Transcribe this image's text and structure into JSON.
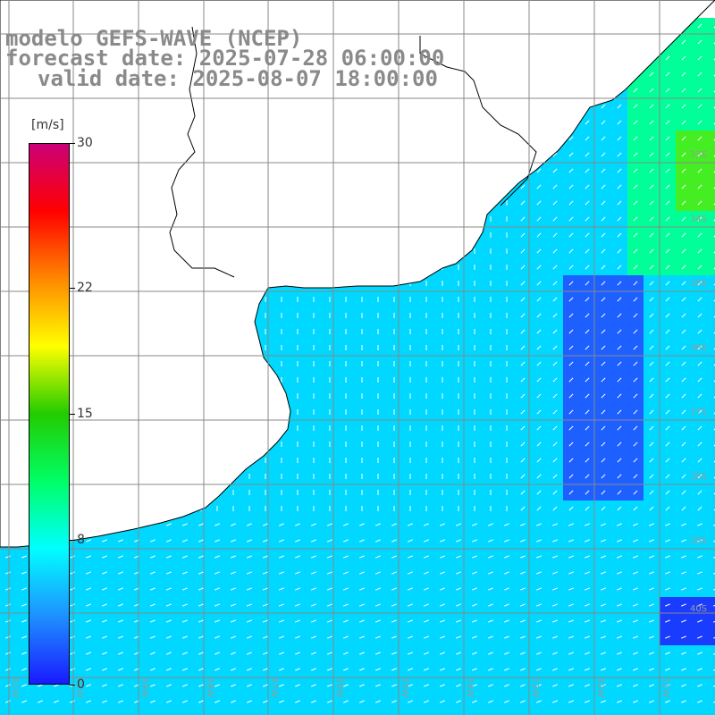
{
  "title": {
    "line1": "modelo GEFS-WAVE (NCEP)",
    "line2": "forecast date: 2025-07-28 06:00:00",
    "line3": "valid date: 2025-08-07 18:00:00"
  },
  "colorbar": {
    "units": "[m/s]",
    "ticks": [
      {
        "label": "30",
        "value": 30
      },
      {
        "label": "22",
        "value": 22
      },
      {
        "label": "15",
        "value": 15
      },
      {
        "label": "8",
        "value": 8
      },
      {
        "label": "0",
        "value": 0
      }
    ],
    "colors": [
      "#1a1aff",
      "#1e90ff",
      "#00ffff",
      "#00ff66",
      "#22cc00",
      "#ffff00",
      "#ff8800",
      "#ff0000",
      "#cc0077"
    ]
  },
  "map": {
    "lat_labels": [
      "33S",
      "34S",
      "35S",
      "36S",
      "37S",
      "38S",
      "39S",
      "40S"
    ],
    "lon_labels": [
      "61W",
      "60W",
      "59W",
      "58W",
      "57W",
      "56W",
      "55W",
      "54W",
      "53W",
      "52W",
      "51W"
    ],
    "land_color": "#ffffff",
    "grid_color": "#888888"
  }
}
